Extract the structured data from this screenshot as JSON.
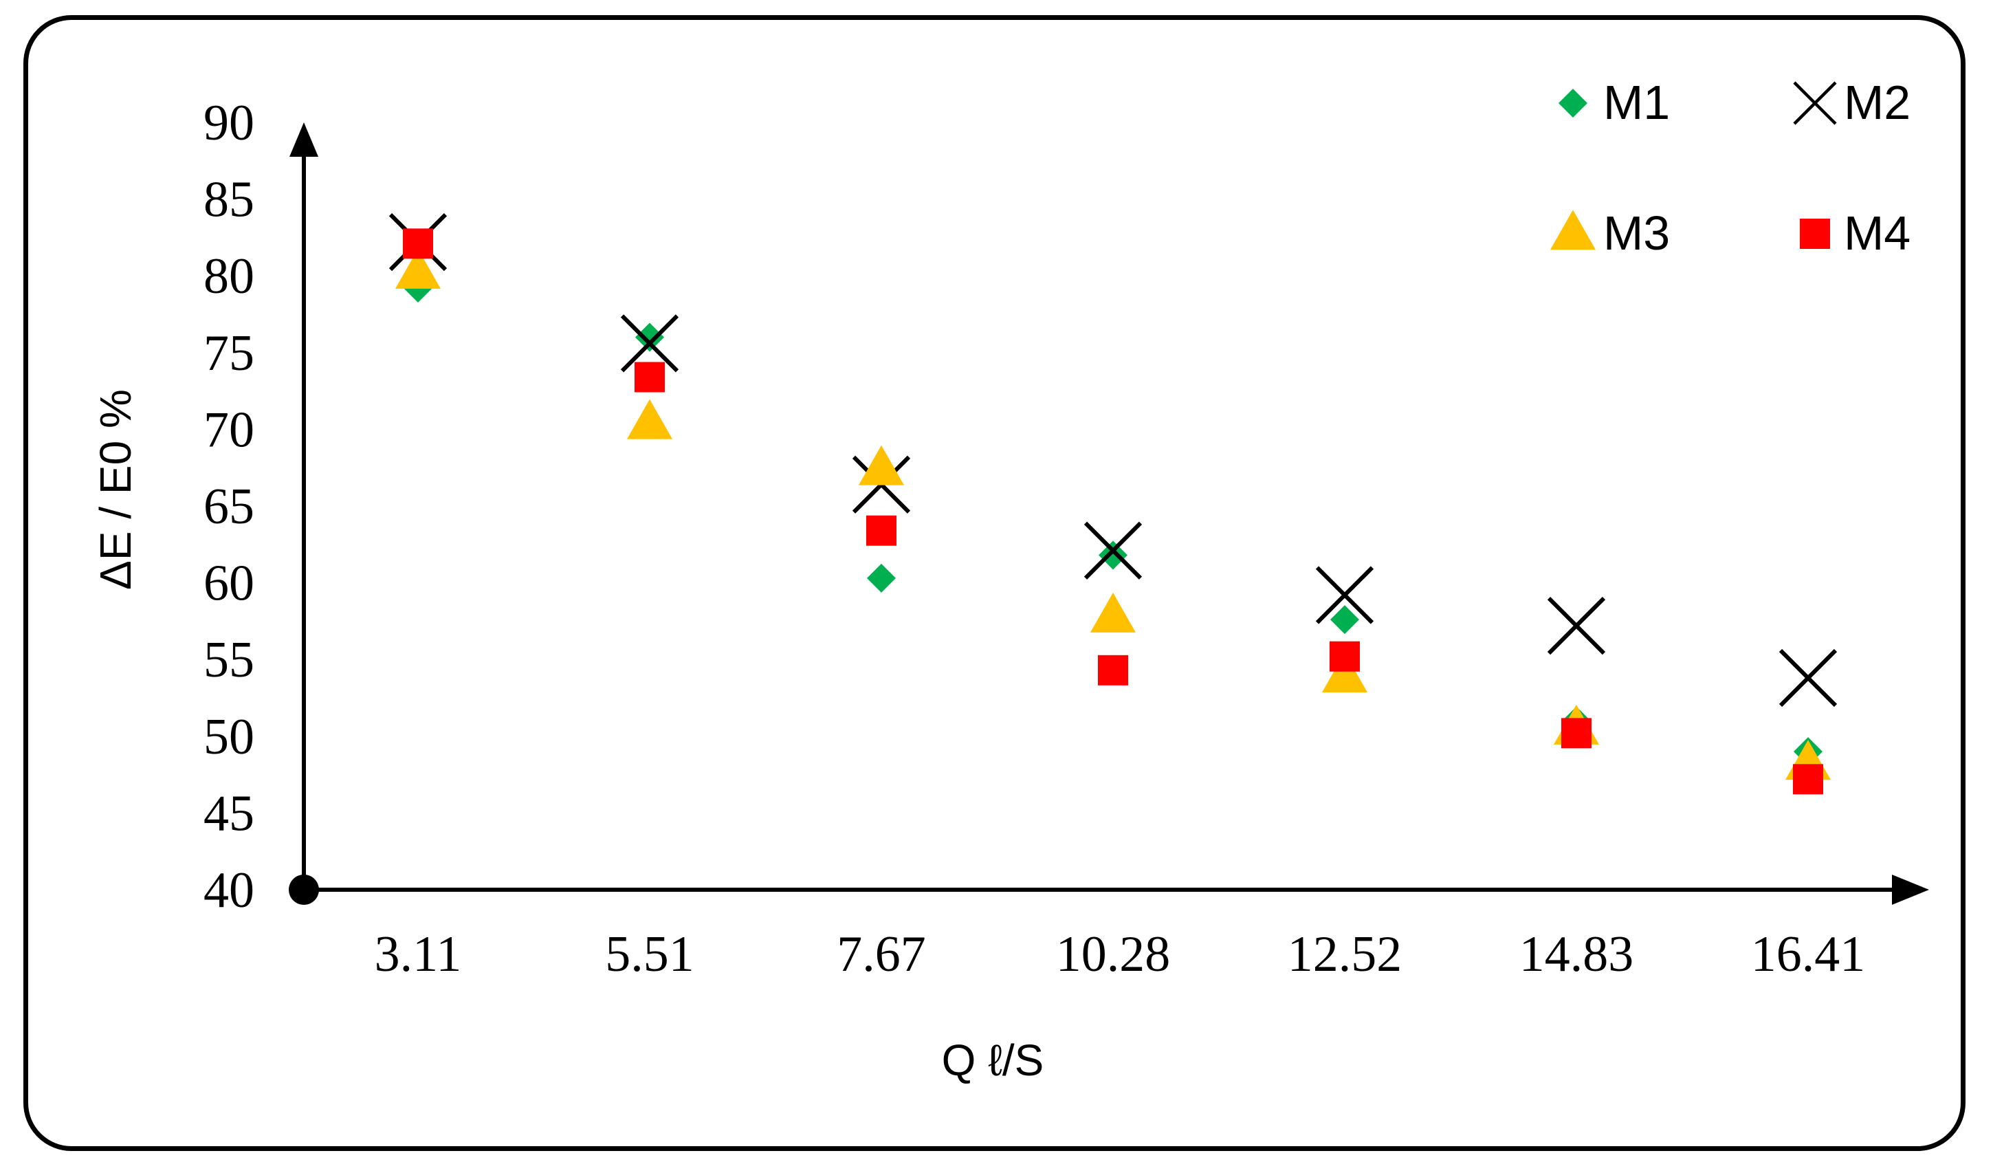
{
  "chart_data": {
    "type": "scatter",
    "title": "",
    "xlabel": "Q ℓ/S",
    "ylabel": "ΔE / E0 %",
    "categories": [
      "3.11",
      "5.51",
      "7.67",
      "10.28",
      "12.52",
      "14.83",
      "16.41"
    ],
    "ylim": [
      40,
      90
    ],
    "yticks": [
      "40",
      "45",
      "50",
      "55",
      "60",
      "65",
      "70",
      "75",
      "80",
      "85",
      "90"
    ],
    "grid": false,
    "legend_position": "top-right",
    "series": [
      {
        "name": "M1",
        "marker": "diamond",
        "color": "#00B050",
        "values": [
          79.2,
          76.0,
          60.3,
          61.8,
          57.6,
          51.0,
          49.0
        ]
      },
      {
        "name": "M2",
        "marker": "x",
        "color": "#000000",
        "values": [
          82.2,
          75.6,
          66.4,
          62.1,
          59.2,
          57.2,
          53.8
        ]
      },
      {
        "name": "M3",
        "marker": "triangle",
        "color": "#FFC000",
        "values": [
          80.2,
          70.4,
          67.4,
          57.8,
          53.9,
          50.5,
          48.2
        ]
      },
      {
        "name": "M4",
        "marker": "square",
        "color": "#FF0000",
        "values": [
          82.1,
          73.4,
          63.4,
          54.3,
          55.2,
          50.2,
          47.2
        ]
      }
    ]
  }
}
